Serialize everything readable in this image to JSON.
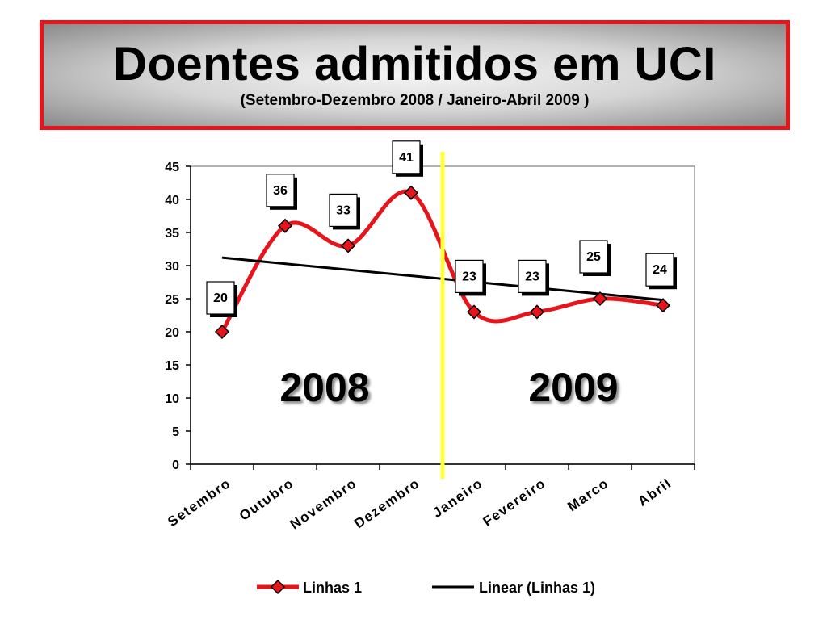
{
  "slide": {
    "title": "Doentes admitidos em UCI",
    "subtitle": "(Setembro-Dezembro 2008 / Janeiro-Abril 2009 )"
  },
  "chart_data": {
    "type": "line",
    "categories": [
      "Setembro",
      "Outubro",
      "Novembro",
      "Dezembro",
      "Janeiro",
      "Fevereiro",
      "Marco",
      "Abril"
    ],
    "series": [
      {
        "name": "Linhas 1",
        "values": [
          20,
          36,
          33,
          41,
          23,
          23,
          25,
          24
        ],
        "color": "#e8141b",
        "marker": "diamond"
      },
      {
        "name": "Linear (Linhas 1)",
        "type": "trendline",
        "start": 31.2,
        "end": 24.8,
        "color": "#000000"
      }
    ],
    "ylim": [
      0,
      45
    ],
    "yticks": [
      0,
      5,
      10,
      15,
      20,
      25,
      30,
      35,
      40,
      45
    ],
    "grid": false,
    "legend_position": "bottom",
    "annotations": [
      {
        "text": "2008",
        "region": "left"
      },
      {
        "text": "2009",
        "region": "right"
      }
    ],
    "divider": {
      "between": [
        "Dezembro",
        "Janeiro"
      ],
      "color": "#ffff33"
    }
  }
}
